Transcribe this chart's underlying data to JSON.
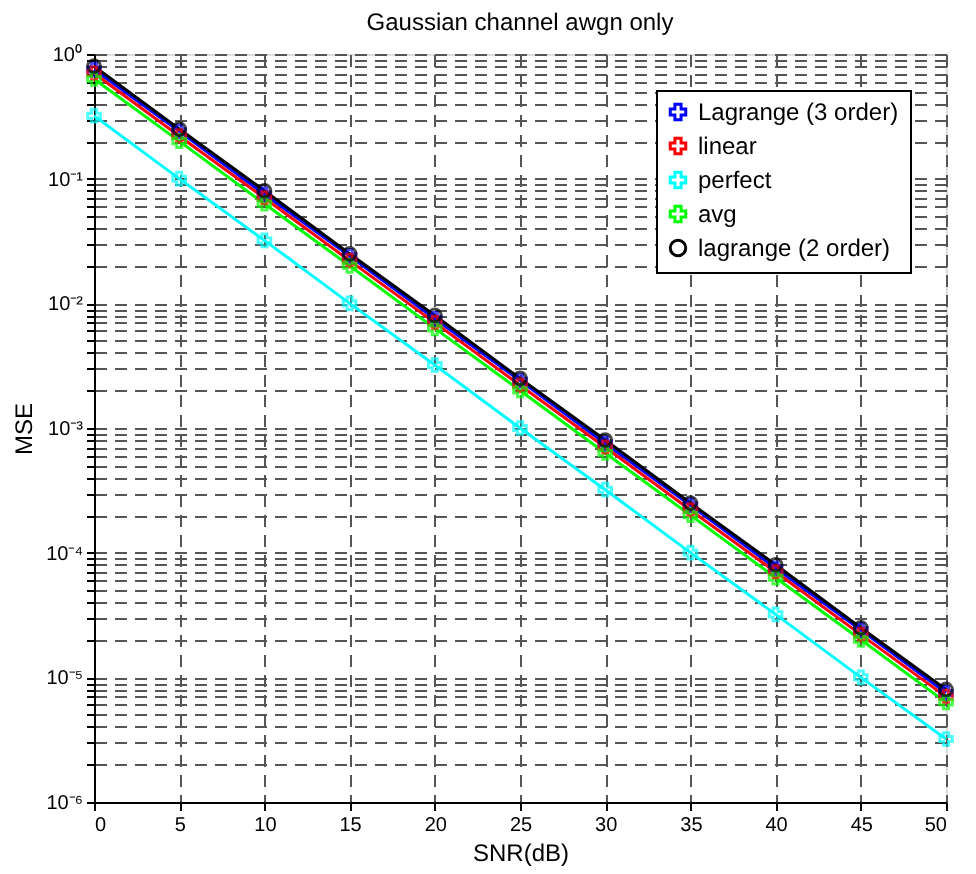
{
  "chart_data": {
    "type": "line",
    "title": "Gaussian channel awgn only",
    "xlabel": "SNR(dB)",
    "ylabel": "MSE",
    "x": [
      0,
      5,
      10,
      15,
      20,
      25,
      30,
      35,
      40,
      45,
      50
    ],
    "series": [
      {
        "name": "Lagrange (3 order)",
        "color": "#0000ff",
        "marker": "cross",
        "values": [
          0.75,
          0.24,
          0.075,
          0.024,
          0.0075,
          0.0024,
          0.00075,
          0.00024,
          7.5e-05,
          2.4e-05,
          7.5e-06
        ]
      },
      {
        "name": "linear",
        "color": "#ff0000",
        "marker": "cross",
        "values": [
          0.7,
          0.22,
          0.07,
          0.022,
          0.007,
          0.0022,
          0.0007,
          0.00022,
          7e-05,
          2.2e-05,
          7e-06
        ]
      },
      {
        "name": "perfect",
        "color": "#00ffff",
        "marker": "cross",
        "values": [
          0.32,
          0.1,
          0.032,
          0.01,
          0.0032,
          0.001,
          0.00032,
          0.0001,
          3.2e-05,
          1e-05,
          3.2e-06
        ]
      },
      {
        "name": "avg",
        "color": "#00ff00",
        "marker": "cross",
        "values": [
          0.63,
          0.2,
          0.063,
          0.02,
          0.0063,
          0.002,
          0.00063,
          0.0002,
          6.3e-05,
          2e-05,
          6.3e-06
        ]
      },
      {
        "name": "lagrange (2 order)",
        "color": "#000000",
        "marker": "circle",
        "values": [
          0.8,
          0.25,
          0.08,
          0.025,
          0.008,
          0.0025,
          0.0008,
          0.00025,
          8e-05,
          2.5e-05,
          8e-06
        ]
      }
    ],
    "log": "y",
    "xlim": [
      0,
      50
    ],
    "xticks": [
      0,
      5,
      10,
      15,
      20,
      25,
      30,
      35,
      40,
      45,
      50
    ],
    "ylim": [
      1e-06,
      1
    ],
    "yticks": [
      {
        "value": 1e-06,
        "label": "10⁻⁶"
      },
      {
        "value": 2e-06,
        "label": null
      },
      {
        "value": 3e-06,
        "label": null
      },
      {
        "value": 4e-06,
        "label": null
      },
      {
        "value": 5e-06,
        "label": null
      },
      {
        "value": 6e-06,
        "label": null
      },
      {
        "value": 7e-06,
        "label": null
      },
      {
        "value": 8e-06,
        "label": null
      },
      {
        "value": 9e-06,
        "label": null
      },
      {
        "value": 1e-05,
        "label": "10⁻⁵"
      },
      {
        "value": 2e-05,
        "label": null
      },
      {
        "value": 3e-05,
        "label": null
      },
      {
        "value": 4e-05,
        "label": null
      },
      {
        "value": 5e-05,
        "label": null
      },
      {
        "value": 6e-05,
        "label": null
      },
      {
        "value": 7e-05,
        "label": null
      },
      {
        "value": 8e-05,
        "label": null
      },
      {
        "value": 9e-05,
        "label": null
      },
      {
        "value": 0.0001,
        "label": "10⁻⁴"
      },
      {
        "value": 0.0002,
        "label": null
      },
      {
        "value": 0.0003,
        "label": null
      },
      {
        "value": 0.0004,
        "label": null
      },
      {
        "value": 0.0005,
        "label": null
      },
      {
        "value": 0.0006,
        "label": null
      },
      {
        "value": 0.0007,
        "label": null
      },
      {
        "value": 0.0008,
        "label": null
      },
      {
        "value": 0.0009,
        "label": null
      },
      {
        "value": 0.001,
        "label": "10⁻³"
      },
      {
        "value": 0.002,
        "label": null
      },
      {
        "value": 0.003,
        "label": null
      },
      {
        "value": 0.004,
        "label": null
      },
      {
        "value": 0.005,
        "label": null
      },
      {
        "value": 0.006,
        "label": null
      },
      {
        "value": 0.007,
        "label": null
      },
      {
        "value": 0.008,
        "label": null
      },
      {
        "value": 0.009,
        "label": null
      },
      {
        "value": 0.01,
        "label": "10⁻²"
      },
      {
        "value": 0.02,
        "label": null
      },
      {
        "value": 0.03,
        "label": null
      },
      {
        "value": 0.04,
        "label": null
      },
      {
        "value": 0.05,
        "label": null
      },
      {
        "value": 0.06,
        "label": null
      },
      {
        "value": 0.07,
        "label": null
      },
      {
        "value": 0.08,
        "label": null
      },
      {
        "value": 0.09,
        "label": null
      },
      {
        "value": 0.1,
        "label": "10⁻¹"
      },
      {
        "value": 0.2,
        "label": null
      },
      {
        "value": 0.3,
        "label": null
      },
      {
        "value": 0.4,
        "label": null
      },
      {
        "value": 0.5,
        "label": null
      },
      {
        "value": 0.6,
        "label": null
      },
      {
        "value": 0.7,
        "label": null
      },
      {
        "value": 0.8,
        "label": null
      },
      {
        "value": 0.9,
        "label": null
      },
      {
        "value": 1,
        "label": "10⁰"
      }
    ],
    "grid": true,
    "legend": "top right",
    "line_style": "solid"
  }
}
